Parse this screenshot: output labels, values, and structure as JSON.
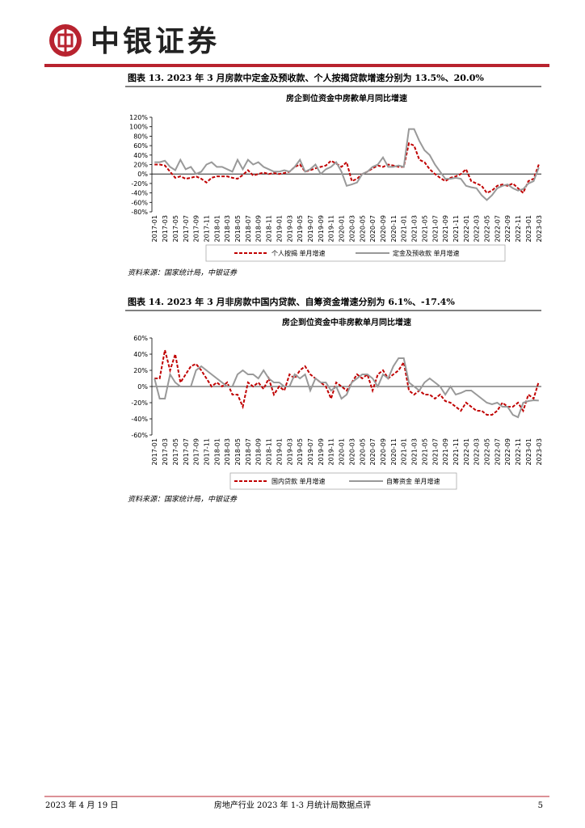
{
  "header": {
    "brand": "中银证券"
  },
  "captions": [
    "图表 13. 2023 年 3 月房款中定金及预收款、个人按揭贷款增速分别为 13.5%、20.0%",
    "图表 14. 2023 年 3 月非房款中国内贷款、自筹资金增速分别为 6.1%、-17.4%"
  ],
  "sources": [
    "资料来源：国家统计局，中银证券",
    "资料来源：国家统计局，中银证券"
  ],
  "chart_data": [
    {
      "type": "line",
      "title": "房企到位资金中房款单月同比增速",
      "categories": [
        "2017-01",
        null,
        "2017-03",
        null,
        "2017-05",
        null,
        "2017-07",
        null,
        "2017-09",
        null,
        "2017-11",
        null,
        "2018-01",
        null,
        "2018-03",
        null,
        "2018-05",
        null,
        "2018-07",
        null,
        "2018-09",
        null,
        "2018-11",
        null,
        "2019-01",
        null,
        "2019-03",
        null,
        "2019-05",
        null,
        "2019-07",
        null,
        "2019-09",
        null,
        "2019-11",
        null,
        "2020-01",
        null,
        "2020-03",
        null,
        "2020-05",
        null,
        "2020-07",
        null,
        "2020-09",
        null,
        "2020-11",
        null,
        "2021-01",
        null,
        "2021-03",
        null,
        "2021-05",
        null,
        "2021-07",
        null,
        "2021-09",
        null,
        "2021-11",
        null,
        "2022-01",
        null,
        "2022-03",
        null,
        "2022-05",
        null,
        "2022-07",
        null,
        "2022-09",
        null,
        "2022-11",
        null,
        "2023-01",
        null,
        "2023-03"
      ],
      "ylim": [
        -80,
        120
      ],
      "yticks": [
        {
          "value": -80,
          "label": "-80%"
        },
        {
          "value": -60,
          "label": "-60%"
        },
        {
          "value": -40,
          "label": "-40%"
        },
        {
          "value": -20,
          "label": "-20%"
        },
        {
          "value": 0,
          "label": "0%"
        },
        {
          "value": 20,
          "label": "20%"
        },
        {
          "value": 40,
          "label": "40%"
        },
        {
          "value": 60,
          "label": "60%"
        },
        {
          "value": 80,
          "label": "80%"
        },
        {
          "value": 100,
          "label": "100%"
        },
        {
          "value": 120,
          "label": "120%"
        }
      ],
      "series": [
        {
          "name": "个人按揭 单月增速",
          "color": "#c00000",
          "dashed": true,
          "values": [
            20,
            20,
            18,
            5,
            -8,
            -5,
            -10,
            -8,
            -5,
            -10,
            -18,
            -8,
            -5,
            -5,
            -5,
            -8,
            -10,
            -2,
            8,
            -3,
            0,
            3,
            0,
            2,
            0,
            2,
            5,
            15,
            20,
            5,
            8,
            12,
            15,
            18,
            28,
            22,
            15,
            25,
            -15,
            -10,
            0,
            5,
            12,
            18,
            15,
            20,
            18,
            15,
            15,
            65,
            60,
            30,
            25,
            10,
            0,
            -8,
            -15,
            -8,
            -5,
            0,
            10,
            -15,
            -20,
            -25,
            -40,
            -35,
            -25,
            -22,
            -25,
            -20,
            -30,
            -40,
            -15,
            -10,
            20.0
          ]
        },
        {
          "name": "定金及预收款 单月增速",
          "color": "#999999",
          "dashed": false,
          "values": [
            25,
            25,
            28,
            15,
            8,
            30,
            10,
            15,
            0,
            5,
            20,
            25,
            15,
            15,
            10,
            5,
            30,
            10,
            30,
            20,
            25,
            15,
            10,
            5,
            5,
            8,
            5,
            15,
            30,
            5,
            10,
            20,
            0,
            10,
            15,
            25,
            5,
            -25,
            -22,
            -18,
            0,
            5,
            15,
            20,
            35,
            15,
            15,
            18,
            15,
            95,
            95,
            70,
            50,
            40,
            20,
            5,
            -10,
            -10,
            -8,
            -10,
            -25,
            -28,
            -30,
            -45,
            -55,
            -45,
            -30,
            -25,
            -22,
            -30,
            -35,
            -32,
            -20,
            -15,
            13.5
          ]
        }
      ]
    },
    {
      "type": "line",
      "title": "房企到位资金中非房款单月同比增速",
      "categories": [
        "2017-01",
        null,
        "2017-03",
        null,
        "2017-05",
        null,
        "2017-07",
        null,
        "2017-09",
        null,
        "2017-11",
        null,
        "2018-01",
        null,
        "2018-03",
        null,
        "2018-05",
        null,
        "2018-07",
        null,
        "2018-09",
        null,
        "2018-11",
        null,
        "2019-01",
        null,
        "2019-03",
        null,
        "2019-05",
        null,
        "2019-07",
        null,
        "2019-09",
        null,
        "2019-11",
        null,
        "2020-01",
        null,
        "2020-03",
        null,
        "2020-05",
        null,
        "2020-07",
        null,
        "2020-09",
        null,
        "2020-11",
        null,
        "2021-01",
        null,
        "2021-03",
        null,
        "2021-05",
        null,
        "2021-07",
        null,
        "2021-09",
        null,
        "2021-11",
        null,
        "2022-01",
        null,
        "2022-03",
        null,
        "2022-05",
        null,
        "2022-07",
        null,
        "2022-09",
        null,
        "2022-11",
        null,
        "2023-01",
        null,
        "2023-03"
      ],
      "ylim": [
        -60,
        60
      ],
      "yticks": [
        {
          "value": -60,
          "label": "-60%"
        },
        {
          "value": -40,
          "label": "-40%"
        },
        {
          "value": -20,
          "label": "-20%"
        },
        {
          "value": 0,
          "label": "0%"
        },
        {
          "value": 20,
          "label": "20%"
        },
        {
          "value": 40,
          "label": "40%"
        },
        {
          "value": 60,
          "label": "60%"
        }
      ],
      "series": [
        {
          "name": "国内贷款 单月增速",
          "color": "#c00000",
          "dashed": true,
          "values": [
            10,
            10,
            45,
            20,
            40,
            5,
            15,
            25,
            28,
            20,
            10,
            0,
            5,
            0,
            5,
            -10,
            -10,
            -25,
            5,
            0,
            5,
            -3,
            10,
            -10,
            0,
            -5,
            15,
            10,
            20,
            25,
            15,
            10,
            5,
            0,
            -15,
            5,
            0,
            -5,
            5,
            15,
            10,
            15,
            -5,
            15,
            20,
            10,
            15,
            20,
            30,
            -5,
            -10,
            -5,
            -10,
            -10,
            -15,
            -10,
            -18,
            -20,
            -25,
            -30,
            -20,
            -25,
            -30,
            -30,
            -35,
            -35,
            -30,
            -20,
            -25,
            -25,
            -20,
            -30,
            -10,
            -15,
            6.1
          ]
        },
        {
          "name": "自筹资金 单月增速",
          "color": "#999999",
          "dashed": false,
          "values": [
            10,
            -15,
            -15,
            15,
            5,
            0,
            0,
            0,
            20,
            25,
            20,
            15,
            10,
            5,
            0,
            0,
            15,
            20,
            15,
            15,
            10,
            20,
            10,
            5,
            5,
            0,
            0,
            15,
            10,
            15,
            -5,
            10,
            5,
            5,
            -5,
            0,
            -15,
            -10,
            5,
            10,
            15,
            15,
            10,
            0,
            15,
            10,
            25,
            35,
            35,
            5,
            0,
            -5,
            5,
            10,
            5,
            0,
            -10,
            0,
            -10,
            -8,
            -5,
            -5,
            -10,
            -15,
            -20,
            -22,
            -20,
            -25,
            -25,
            -35,
            -38,
            -20,
            -18,
            -17,
            -17.4
          ]
        }
      ]
    }
  ],
  "footer": {
    "date": "2023 年 4 月 19 日",
    "report": "房地产行业 2023 年 1-3 月统计局数据点评",
    "page": "5"
  }
}
